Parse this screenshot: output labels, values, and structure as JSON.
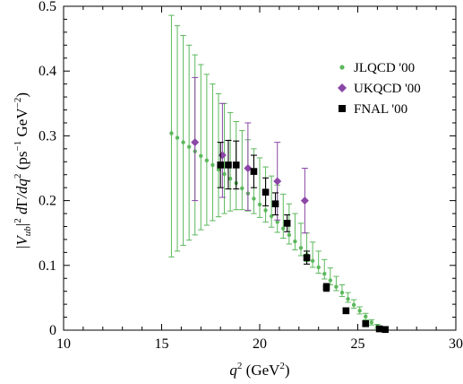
{
  "chart_data": {
    "type": "scatter",
    "xlabel": "q² (GeV²)",
    "ylabel": "|V_ub|² dΓ/dq² (ps⁻¹ GeV⁻²)",
    "xlim": [
      10,
      30
    ],
    "ylim": [
      0,
      0.5
    ],
    "x_ticks": [
      "10",
      "15",
      "20",
      "25",
      "30"
    ],
    "y_ticks": [
      "0",
      "0.1",
      "0.2",
      "0.3",
      "0.4",
      "0.5"
    ],
    "legend_position": "top-right",
    "series": [
      {
        "name": "JLQCD '00",
        "marker": "circle",
        "color": "#5cb85c",
        "x_start": 15.5,
        "x_end": 26.3,
        "count": 37,
        "center": [
          0.304,
          0.297,
          0.29,
          0.283,
          0.276,
          0.269,
          0.262,
          0.255,
          0.248,
          0.241,
          0.234,
          0.227,
          0.219,
          0.211,
          0.203,
          0.194,
          0.185,
          0.176,
          0.167,
          0.157,
          0.147,
          0.137,
          0.127,
          0.117,
          0.107,
          0.097,
          0.087,
          0.077,
          0.067,
          0.058,
          0.048,
          0.039,
          0.03,
          0.021,
          0.012,
          0.006,
          0.003
        ],
        "upper": [
          0.486,
          0.47,
          0.455,
          0.44,
          0.425,
          0.41,
          0.395,
          0.38,
          0.365,
          0.35,
          0.336,
          0.322,
          0.308,
          0.294,
          0.28,
          0.266,
          0.252,
          0.238,
          0.224,
          0.21,
          0.195,
          0.18,
          0.165,
          0.15,
          0.136,
          0.122,
          0.109,
          0.096,
          0.083,
          0.07,
          0.058,
          0.047,
          0.036,
          0.026,
          0.016,
          0.009,
          0.004
        ],
        "lower": [
          0.113,
          0.122,
          0.131,
          0.139,
          0.147,
          0.155,
          0.162,
          0.169,
          0.175,
          0.18,
          0.184,
          0.186,
          0.186,
          0.184,
          0.18,
          0.174,
          0.167,
          0.159,
          0.151,
          0.142,
          0.133,
          0.124,
          0.115,
          0.106,
          0.097,
          0.088,
          0.079,
          0.07,
          0.061,
          0.052,
          0.043,
          0.034,
          0.025,
          0.016,
          0.008,
          0.003,
          0.001
        ]
      },
      {
        "name": "UKQCD '00",
        "marker": "diamond",
        "color": "#8b46a6",
        "x": [
          16.7,
          18.1,
          19.4,
          20.9,
          22.3
        ],
        "y": [
          0.29,
          0.27,
          0.25,
          0.23,
          0.2
        ],
        "err_high": [
          0.39,
          0.35,
          0.32,
          0.29,
          0.25
        ],
        "err_low": [
          0.2,
          0.205,
          0.185,
          0.17,
          0.15
        ]
      },
      {
        "name": "FNAL '00",
        "marker": "square",
        "color": "#000000",
        "x": [
          18.0,
          18.4,
          18.8,
          19.7,
          20.3,
          20.8,
          21.4,
          22.4,
          23.4,
          24.4,
          25.4,
          26.1,
          26.4
        ],
        "y": [
          0.255,
          0.255,
          0.255,
          0.245,
          0.213,
          0.195,
          0.165,
          0.112,
          0.066,
          0.03,
          0.01,
          0.002,
          0.001
        ],
        "err_high": [
          0.29,
          0.293,
          0.292,
          0.27,
          0.235,
          0.212,
          0.178,
          0.122,
          0.072,
          0.034,
          0.013,
          0.003,
          0.002
        ],
        "err_low": [
          0.22,
          0.218,
          0.218,
          0.22,
          0.192,
          0.178,
          0.152,
          0.102,
          0.06,
          0.026,
          0.007,
          0.001,
          0.0
        ]
      }
    ]
  }
}
